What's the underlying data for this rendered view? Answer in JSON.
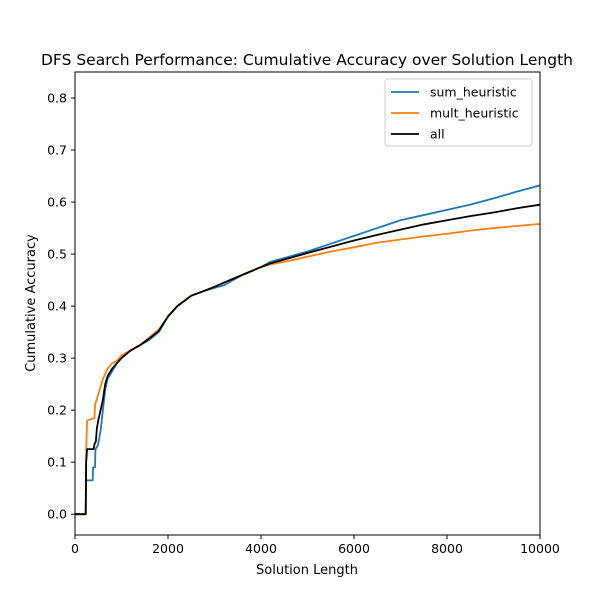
{
  "chart_data": {
    "type": "line",
    "title": "DFS Search Performance: Cumulative Accuracy over Solution Length",
    "xlabel": "Solution Length",
    "ylabel": "Cumulative Accuracy",
    "xlim": [
      0,
      10000
    ],
    "ylim": [
      -0.04,
      0.85
    ],
    "xticks": [
      0,
      2000,
      4000,
      6000,
      8000,
      10000
    ],
    "xtick_labels": [
      "0",
      "2000",
      "4000",
      "6000",
      "8000",
      "10000"
    ],
    "yticks": [
      0.0,
      0.1,
      0.2,
      0.3,
      0.4,
      0.5,
      0.6,
      0.7,
      0.8
    ],
    "ytick_labels": [
      "0.0",
      "0.1",
      "0.2",
      "0.3",
      "0.4",
      "0.5",
      "0.6",
      "0.7",
      "0.8"
    ],
    "grid": false,
    "legend_position": "top-right",
    "series": [
      {
        "name": "sum_heuristic",
        "color": "#1f77b4",
        "x": [
          0,
          200,
          230,
          240,
          380,
          390,
          430,
          440,
          480,
          500,
          550,
          600,
          650,
          700,
          800,
          900,
          1000,
          1200,
          1400,
          1600,
          1800,
          2000,
          2200,
          2500,
          2800,
          3000,
          3200,
          3600,
          4000,
          4200,
          4600,
          5000,
          5500,
          6000,
          6500,
          7000,
          7500,
          8000,
          8500,
          9000,
          9500,
          10000
        ],
        "y": [
          0,
          0,
          0.0,
          0.065,
          0.065,
          0.09,
          0.09,
          0.125,
          0.13,
          0.135,
          0.16,
          0.2,
          0.24,
          0.26,
          0.275,
          0.29,
          0.305,
          0.315,
          0.325,
          0.335,
          0.35,
          0.38,
          0.4,
          0.42,
          0.43,
          0.435,
          0.44,
          0.46,
          0.475,
          0.485,
          0.495,
          0.505,
          0.52,
          0.535,
          0.55,
          0.565,
          0.575,
          0.585,
          0.595,
          0.607,
          0.62,
          0.632
        ]
      },
      {
        "name": "mult_heuristic",
        "color": "#ff7f0e",
        "x": [
          0,
          200,
          230,
          240,
          260,
          420,
          430,
          500,
          550,
          600,
          700,
          800,
          900,
          1000,
          1200,
          1400,
          1600,
          1800,
          2000,
          2200,
          2500,
          2800,
          3000,
          3200,
          3600,
          4000,
          4200,
          4600,
          5000,
          5500,
          6000,
          6500,
          7000,
          7500,
          8000,
          8500,
          9000,
          9500,
          10000
        ],
        "y": [
          0,
          0,
          0.0,
          0.12,
          0.18,
          0.185,
          0.21,
          0.23,
          0.245,
          0.26,
          0.28,
          0.29,
          0.295,
          0.305,
          0.315,
          0.325,
          0.34,
          0.355,
          0.38,
          0.4,
          0.42,
          0.43,
          0.437,
          0.445,
          0.46,
          0.475,
          0.48,
          0.487,
          0.495,
          0.505,
          0.513,
          0.522,
          0.528,
          0.534,
          0.539,
          0.545,
          0.55,
          0.554,
          0.558
        ]
      },
      {
        "name": "all",
        "color": "#000000",
        "x": [
          0,
          200,
          230,
          240,
          260,
          400,
          420,
          450,
          470,
          500,
          550,
          600,
          650,
          700,
          800,
          900,
          1000,
          1200,
          1400,
          1600,
          1800,
          2000,
          2200,
          2500,
          2800,
          3000,
          3200,
          3600,
          4000,
          4200,
          4600,
          5000,
          5500,
          6000,
          6500,
          7000,
          7500,
          8000,
          8500,
          9000,
          9500,
          10000
        ],
        "y": [
          0,
          0,
          0.0,
          0.1,
          0.125,
          0.125,
          0.135,
          0.14,
          0.165,
          0.18,
          0.2,
          0.22,
          0.25,
          0.265,
          0.28,
          0.29,
          0.3,
          0.315,
          0.325,
          0.338,
          0.352,
          0.38,
          0.4,
          0.42,
          0.43,
          0.437,
          0.445,
          0.46,
          0.475,
          0.482,
          0.492,
          0.502,
          0.514,
          0.526,
          0.537,
          0.547,
          0.557,
          0.565,
          0.573,
          0.58,
          0.588,
          0.595
        ]
      }
    ]
  }
}
